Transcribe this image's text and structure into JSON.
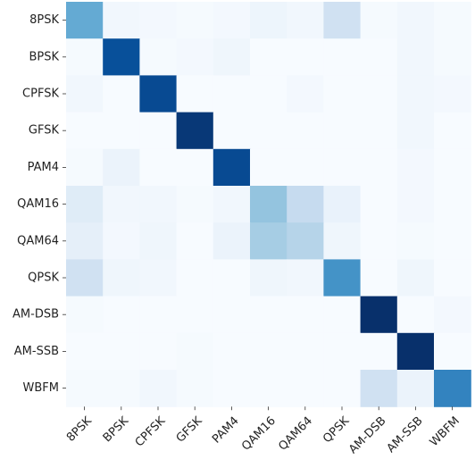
{
  "chart_data": {
    "type": "heatmap",
    "title": "",
    "xlabel": "",
    "ylabel": "",
    "rows": [
      "8PSK",
      "BPSK",
      "CPFSK",
      "GFSK",
      "PAM4",
      "QAM16",
      "QAM64",
      "QPSK",
      "AM-DSB",
      "AM-SSB",
      "WBFM"
    ],
    "cols": [
      "8PSK",
      "BPSK",
      "CPFSK",
      "GFSK",
      "PAM4",
      "QAM16",
      "QAM64",
      "QPSK",
      "AM-DSB",
      "AM-SSB",
      "WBFM"
    ],
    "values": [
      [
        0.52,
        0.03,
        0.02,
        0.01,
        0.02,
        0.05,
        0.03,
        0.2,
        0.01,
        0.03,
        0.01
      ],
      [
        0.01,
        0.88,
        0.01,
        0.02,
        0.04,
        0.0,
        0.0,
        0.0,
        0.0,
        0.03,
        0.01
      ],
      [
        0.03,
        0.0,
        0.9,
        0.0,
        0.0,
        0.0,
        0.02,
        0.0,
        0.0,
        0.03,
        0.02
      ],
      [
        0.0,
        0.0,
        0.0,
        0.97,
        0.0,
        0.0,
        0.0,
        0.0,
        0.0,
        0.03,
        0.0
      ],
      [
        0.01,
        0.06,
        0.0,
        0.0,
        0.9,
        0.0,
        0.0,
        0.0,
        0.0,
        0.02,
        0.0
      ],
      [
        0.12,
        0.03,
        0.03,
        0.01,
        0.03,
        0.4,
        0.25,
        0.07,
        0.0,
        0.02,
        0.0
      ],
      [
        0.09,
        0.02,
        0.04,
        0.0,
        0.06,
        0.35,
        0.3,
        0.04,
        0.0,
        0.01,
        0.0
      ],
      [
        0.2,
        0.04,
        0.03,
        0.0,
        0.0,
        0.04,
        0.03,
        0.62,
        0.0,
        0.04,
        0.0
      ],
      [
        0.01,
        0.0,
        0.0,
        0.0,
        0.0,
        0.0,
        0.0,
        0.0,
        1.0,
        0.0,
        0.02
      ],
      [
        0.0,
        0.0,
        0.0,
        0.01,
        0.0,
        0.0,
        0.0,
        0.0,
        0.0,
        1.0,
        0.0
      ],
      [
        0.01,
        0.01,
        0.03,
        0.01,
        0.0,
        0.0,
        0.0,
        0.0,
        0.2,
        0.06,
        0.68
      ]
    ],
    "range": [
      0,
      1
    ],
    "colormap": "Blues",
    "colorbar": false,
    "grid": false
  }
}
